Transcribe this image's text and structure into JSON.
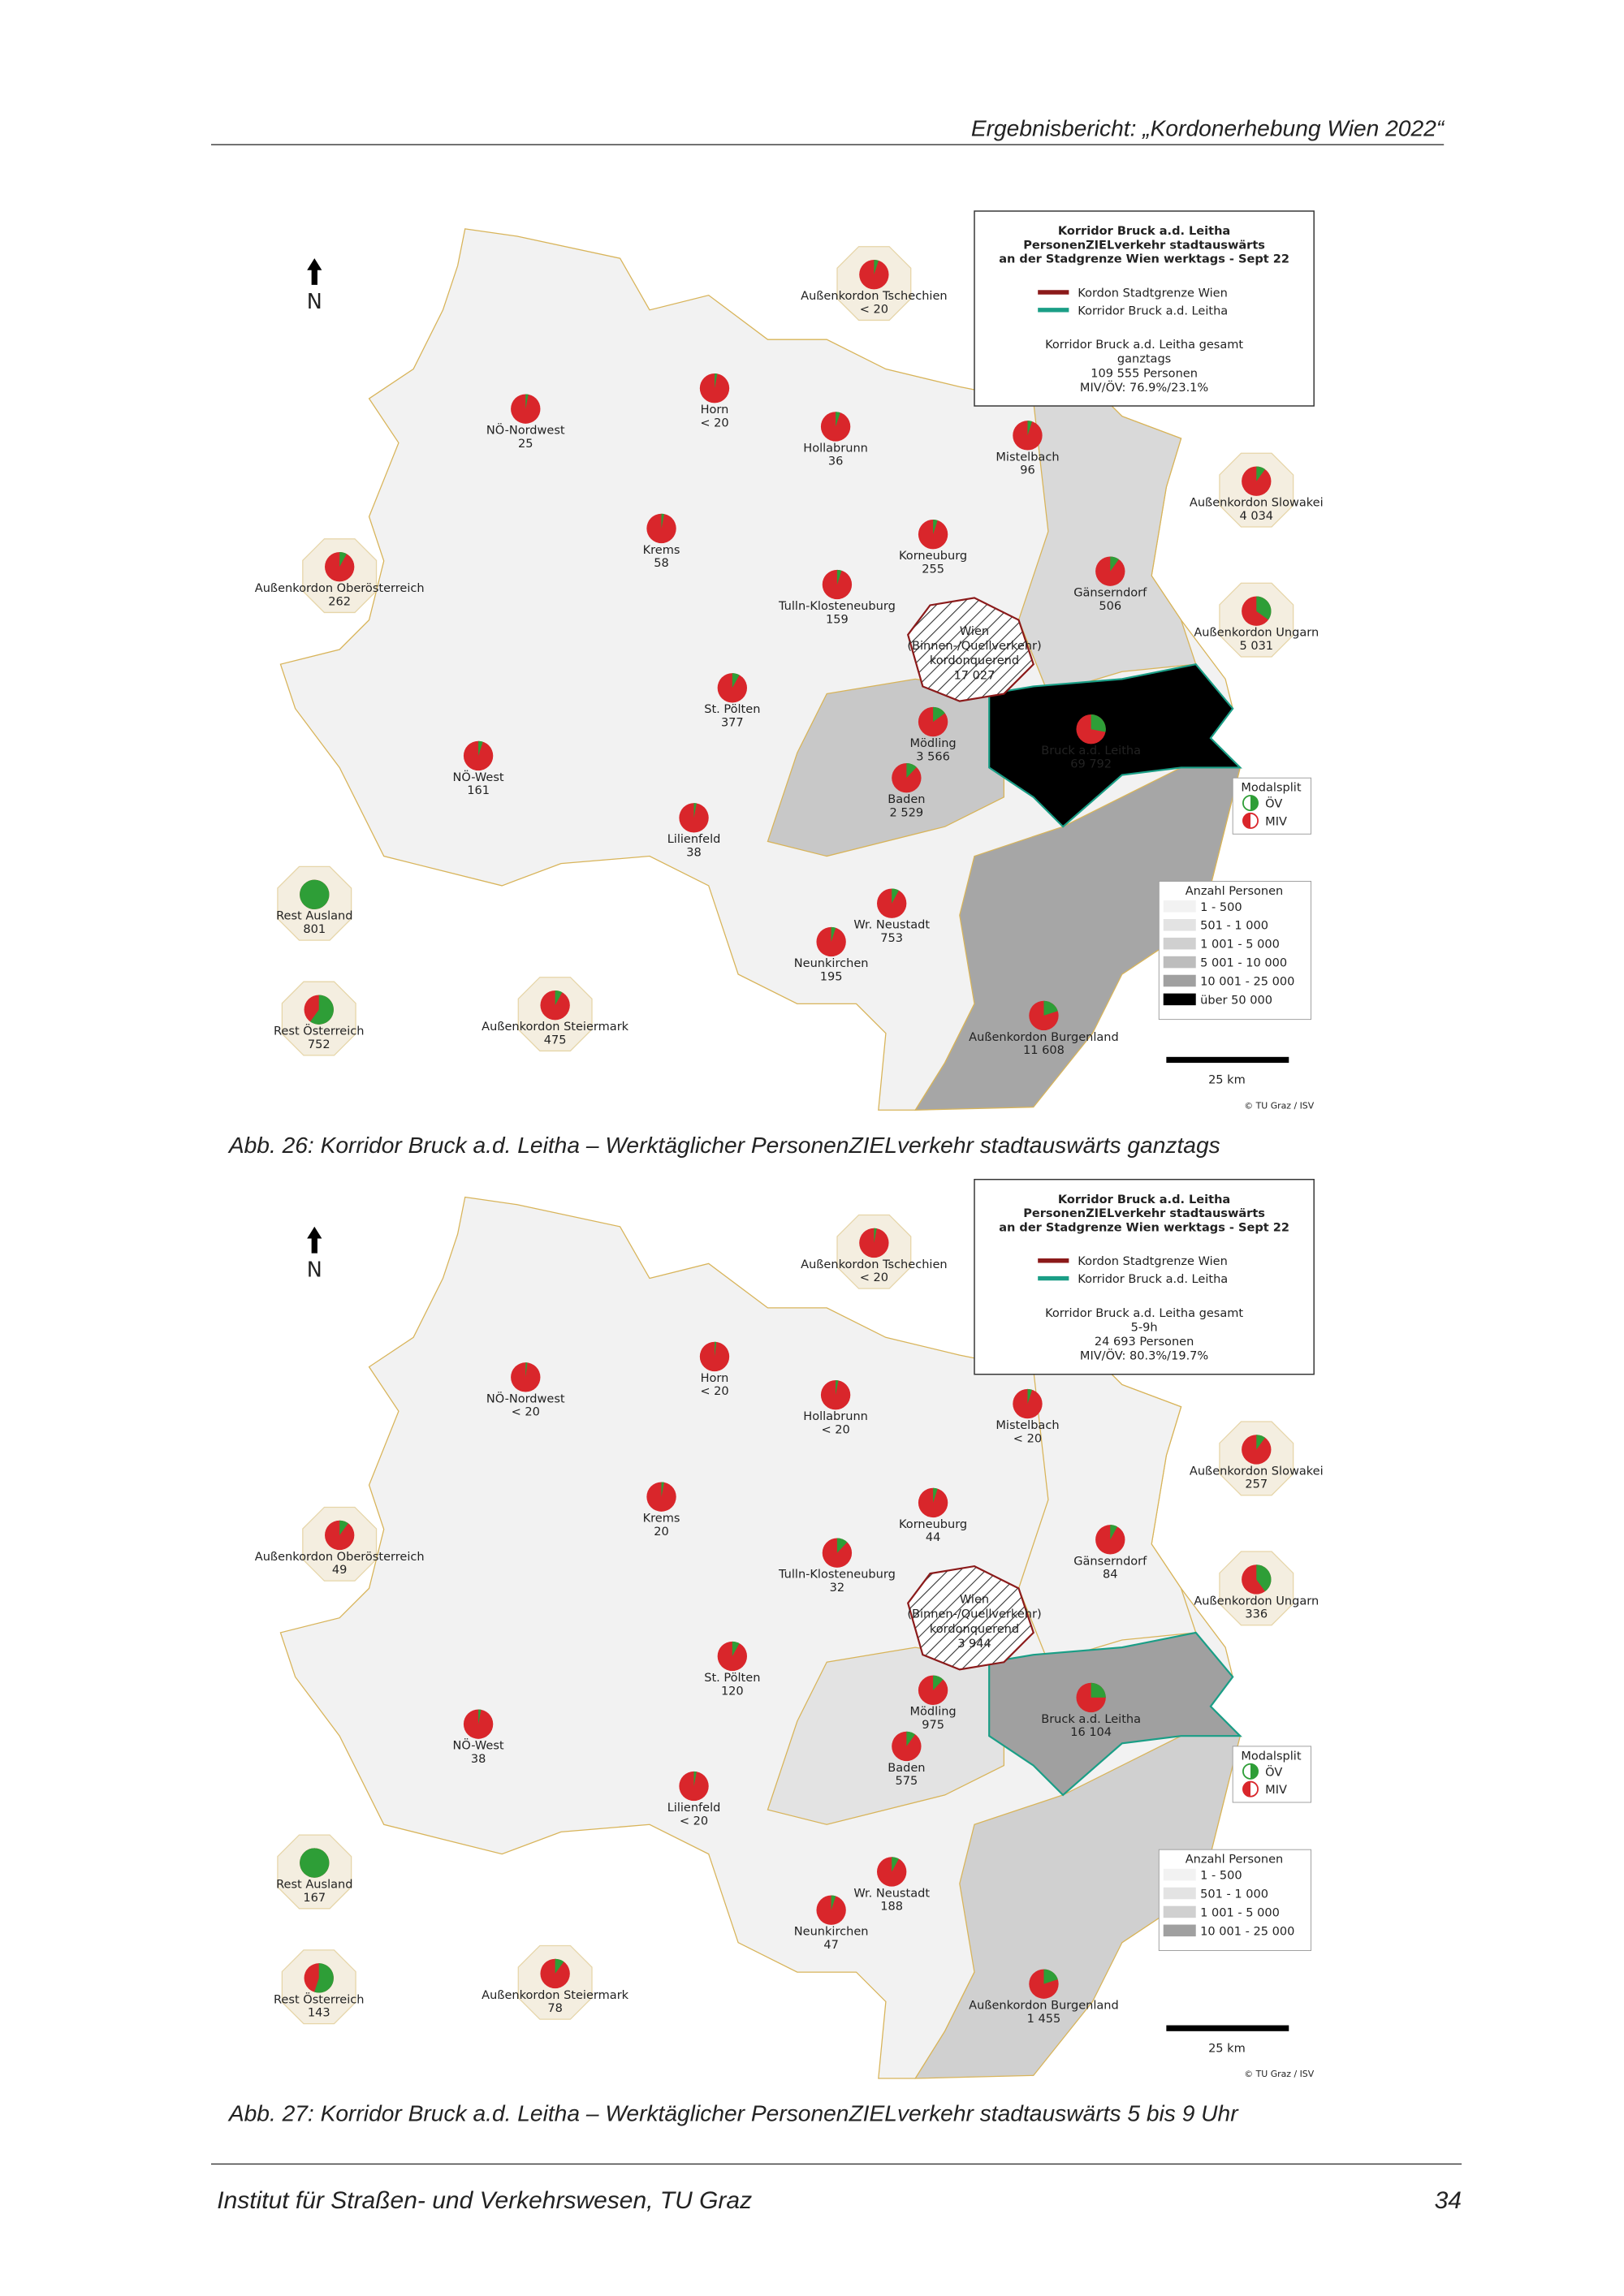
{
  "header": {
    "title": "Ergebnisbericht: „Kordonerhebung Wien 2022“"
  },
  "figures": [
    {
      "legend": {
        "title": [
          "Korridor Bruck a.d. Leitha",
          "PersonenZIELverkehr stadtauswärts",
          "an der Stadgrenze Wien werktags - Sept 22"
        ],
        "items": [
          "Kordon Stadtgrenze Wien",
          "Korridor Bruck a.d. Leitha"
        ],
        "summary": [
          "Korridor Bruck a.d. Leitha gesamt",
          "ganztags",
          "109 555 Personen",
          "MIV/ÖV: 76.9%/23.1%"
        ]
      },
      "north": "N",
      "modal_split": {
        "title": "Modalsplit",
        "items": [
          "ÖV",
          "MIV"
        ]
      },
      "counts": {
        "title": "Anzahl Personen",
        "classes": [
          {
            "label": "1 - 500",
            "color": "#f2f2f2"
          },
          {
            "label": "501 - 1 000",
            "color": "#e3e3e3"
          },
          {
            "label": "1 001 - 5 000",
            "color": "#d0d0d0"
          },
          {
            "label": "5 001 - 10 000",
            "color": "#bdbdbd"
          },
          {
            "label": "10 001 - 25 000",
            "color": "#a0a0a0"
          },
          {
            "label": "über 50 000",
            "color": "#000000"
          }
        ]
      },
      "scale": "25 km",
      "credit": "© TU Graz / ISV",
      "regions": [
        {
          "name": "Außenkordon Tschechien",
          "value": "< 20",
          "ov": 5
        },
        {
          "name": "NÖ-Nordwest",
          "value": "25",
          "ov": 3
        },
        {
          "name": "Horn",
          "value": "< 20",
          "ov": 3
        },
        {
          "name": "Hollabrunn",
          "value": "36",
          "ov": 5
        },
        {
          "name": "Mistelbach",
          "value": "96",
          "ov": 5
        },
        {
          "name": "Außenkordon Slowakei",
          "value": "4 034",
          "ov": 10
        },
        {
          "name": "Außenkordon Oberösterreich",
          "value": "262",
          "ov": 8
        },
        {
          "name": "Krems",
          "value": "58",
          "ov": 3
        },
        {
          "name": "Korneuburg",
          "value": "255",
          "ov": 5
        },
        {
          "name": "Gänserndorf",
          "value": "506",
          "ov": 10
        },
        {
          "name": "Tulln-Klosteneuburg",
          "value": "159",
          "ov": 5
        },
        {
          "name": "Außenkordon Ungarn",
          "value": "5 031",
          "ov": 35
        },
        {
          "name": [
            "Wien",
            "(Binnen-/Quellverkehr)",
            "kordonquerend"
          ],
          "value": "17 027"
        },
        {
          "name": "St. Pölten",
          "value": "377",
          "ov": 8
        },
        {
          "name": "Mödling",
          "value": "3 566",
          "ov": 15
        },
        {
          "name": "Bruck a.d. Leitha",
          "value": "69 792",
          "ov": 28
        },
        {
          "name": "NÖ-West",
          "value": "161",
          "ov": 5
        },
        {
          "name": "Baden",
          "value": "2 529",
          "ov": 12
        },
        {
          "name": "Lilienfeld",
          "value": "38",
          "ov": 3
        },
        {
          "name": "Rest Ausland",
          "value": "801",
          "ov": 100
        },
        {
          "name": "Wr. Neustadt",
          "value": "753",
          "ov": 8
        },
        {
          "name": "Neunkirchen",
          "value": "195",
          "ov": 5
        },
        {
          "name": "Rest Österreich",
          "value": "752",
          "ov": 60
        },
        {
          "name": "Außenkordon Steiermark",
          "value": "475",
          "ov": 8
        },
        {
          "name": "Außenkordon Burgenland",
          "value": "11 608",
          "ov": 20
        }
      ],
      "caption": "Abb. 26: Korridor Bruck a.d. Leitha – Werktäglicher PersonenZIELverkehr stadtauswärts ganztags"
    },
    {
      "legend": {
        "title": [
          "Korridor Bruck a.d. Leitha",
          "PersonenZIELverkehr stadtauswärts",
          "an der Stadgrenze Wien werktags - Sept 22"
        ],
        "items": [
          "Kordon Stadtgrenze Wien",
          "Korridor Bruck a.d. Leitha"
        ],
        "summary": [
          "Korridor Bruck a.d. Leitha gesamt",
          "5-9h",
          "24 693 Personen",
          "MIV/ÖV: 80.3%/19.7%"
        ]
      },
      "north": "N",
      "modal_split": {
        "title": "Modalsplit",
        "items": [
          "ÖV",
          "MIV"
        ]
      },
      "counts": {
        "title": "Anzahl Personen",
        "classes": [
          {
            "label": "1 - 500",
            "color": "#f2f2f2"
          },
          {
            "label": "501 - 1 000",
            "color": "#e3e3e3"
          },
          {
            "label": "1 001 - 5 000",
            "color": "#d0d0d0"
          },
          {
            "label": "10 001 - 25 000",
            "color": "#a0a0a0"
          }
        ]
      },
      "scale": "25 km",
      "credit": "© TU Graz / ISV",
      "regions": [
        {
          "name": "Außenkordon Tschechien",
          "value": "< 20",
          "ov": 3
        },
        {
          "name": "NÖ-Nordwest",
          "value": "< 20",
          "ov": 2
        },
        {
          "name": "Horn",
          "value": "< 20",
          "ov": 2
        },
        {
          "name": "Hollabrunn",
          "value": "< 20",
          "ov": 3
        },
        {
          "name": "Mistelbach",
          "value": "< 20",
          "ov": 5
        },
        {
          "name": "Außenkordon Slowakei",
          "value": "257",
          "ov": 10
        },
        {
          "name": "Außenkordon Oberösterreich",
          "value": "49",
          "ov": 10
        },
        {
          "name": "Krems",
          "value": "20",
          "ov": 3
        },
        {
          "name": "Korneuburg",
          "value": "44",
          "ov": 5
        },
        {
          "name": "Gänserndorf",
          "value": "84",
          "ov": 8
        },
        {
          "name": "Tulln-Klosteneuburg",
          "value": "32",
          "ov": 12
        },
        {
          "name": "Außenkordon Ungarn",
          "value": "336",
          "ov": 40
        },
        {
          "name": [
            "Wien",
            "(Binnen-/Quellverkehr)",
            "kordonquerend"
          ],
          "value": "3 944"
        },
        {
          "name": "St. Pölten",
          "value": "120",
          "ov": 8
        },
        {
          "name": "Mödling",
          "value": "975",
          "ov": 12
        },
        {
          "name": "Bruck a.d. Leitha",
          "value": "16 104",
          "ov": 25
        },
        {
          "name": "NÖ-West",
          "value": "38",
          "ov": 3
        },
        {
          "name": "Baden",
          "value": "575",
          "ov": 10
        },
        {
          "name": "Lilienfeld",
          "value": "< 20",
          "ov": 3
        },
        {
          "name": "Rest Ausland",
          "value": "167",
          "ov": 100
        },
        {
          "name": "Wr. Neustadt",
          "value": "188",
          "ov": 8
        },
        {
          "name": "Neunkirchen",
          "value": "47",
          "ov": 5
        },
        {
          "name": "Rest Österreich",
          "value": "143",
          "ov": 55
        },
        {
          "name": "Außenkordon Steiermark",
          "value": "78",
          "ov": 10
        },
        {
          "name": "Außenkordon Burgenland",
          "value": "1 455",
          "ov": 20
        }
      ],
      "caption": "Abb. 27: Korridor Bruck a.d. Leitha – Werktäglicher PersonenZIELverkehr stadtauswärts 5 bis 9 Uhr"
    }
  ],
  "footer": {
    "left": "Institut für Straßen- und Verkehrswesen, TU Graz",
    "page": "34"
  }
}
